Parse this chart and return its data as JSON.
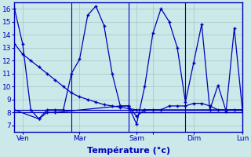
{
  "xlabel": "Température (°c)",
  "background_color": "#cce8e8",
  "grid_color": "#aacccc",
  "line_color": "#0000bb",
  "marker": "+",
  "xlim": [
    0,
    28
  ],
  "ylim": [
    6.5,
    16.5
  ],
  "yticks": [
    7,
    8,
    9,
    10,
    11,
    12,
    13,
    14,
    15,
    16
  ],
  "xtick_positions": [
    1,
    8,
    15,
    17,
    22,
    28
  ],
  "xtick_labels": [
    "Ven",
    "Mar",
    "Sam",
    "",
    "Dim",
    "Lun"
  ],
  "vlines": [
    7,
    14,
    21,
    28
  ],
  "series1": {
    "x": [
      0,
      1,
      2,
      3,
      4,
      5,
      6,
      7,
      8,
      9,
      10,
      11,
      12,
      13,
      14,
      15,
      16,
      17,
      18,
      19,
      20,
      21,
      22,
      23,
      24,
      25,
      26,
      27,
      28
    ],
    "y": [
      16,
      13.3,
      8.2,
      7.5,
      8.2,
      8.2,
      8.2,
      11.0,
      12.1,
      15.5,
      16.2,
      14.7,
      11.0,
      8.5,
      8.5,
      7.1,
      10.0,
      14.1,
      16.0,
      15.0,
      13.0,
      8.8,
      11.8,
      14.8,
      8.2,
      10.1,
      8.1,
      14.5,
      8.2
    ]
  },
  "series2": {
    "x": [
      0,
      1,
      2,
      3,
      4,
      5,
      6,
      7,
      8,
      9,
      10,
      11,
      12,
      13,
      14,
      15,
      16,
      17,
      18,
      19,
      20,
      21,
      22,
      23,
      24,
      25,
      26,
      27,
      28
    ],
    "y": [
      13.3,
      12.5,
      12.0,
      11.5,
      11.0,
      10.5,
      10.0,
      9.5,
      9.2,
      9.0,
      8.8,
      8.6,
      8.5,
      8.4,
      8.3,
      8.2,
      8.2,
      8.2,
      8.2,
      8.5,
      8.5,
      8.5,
      8.7,
      8.7,
      8.5,
      8.2,
      8.2,
      8.2,
      8.2
    ]
  },
  "series3": {
    "x": [
      0,
      3,
      4,
      5,
      13,
      14,
      15,
      16,
      28
    ],
    "y": [
      8.2,
      7.5,
      8.0,
      8.0,
      8.5,
      8.5,
      7.7,
      8.2,
      8.2
    ]
  },
  "flat_lines": [
    {
      "x": [
        0,
        28
      ],
      "y": [
        8.2,
        8.2
      ]
    },
    {
      "x": [
        0,
        28
      ],
      "y": [
        8.0,
        8.0
      ]
    },
    {
      "x": [
        14,
        28
      ],
      "y": [
        8.0,
        8.0
      ]
    }
  ]
}
